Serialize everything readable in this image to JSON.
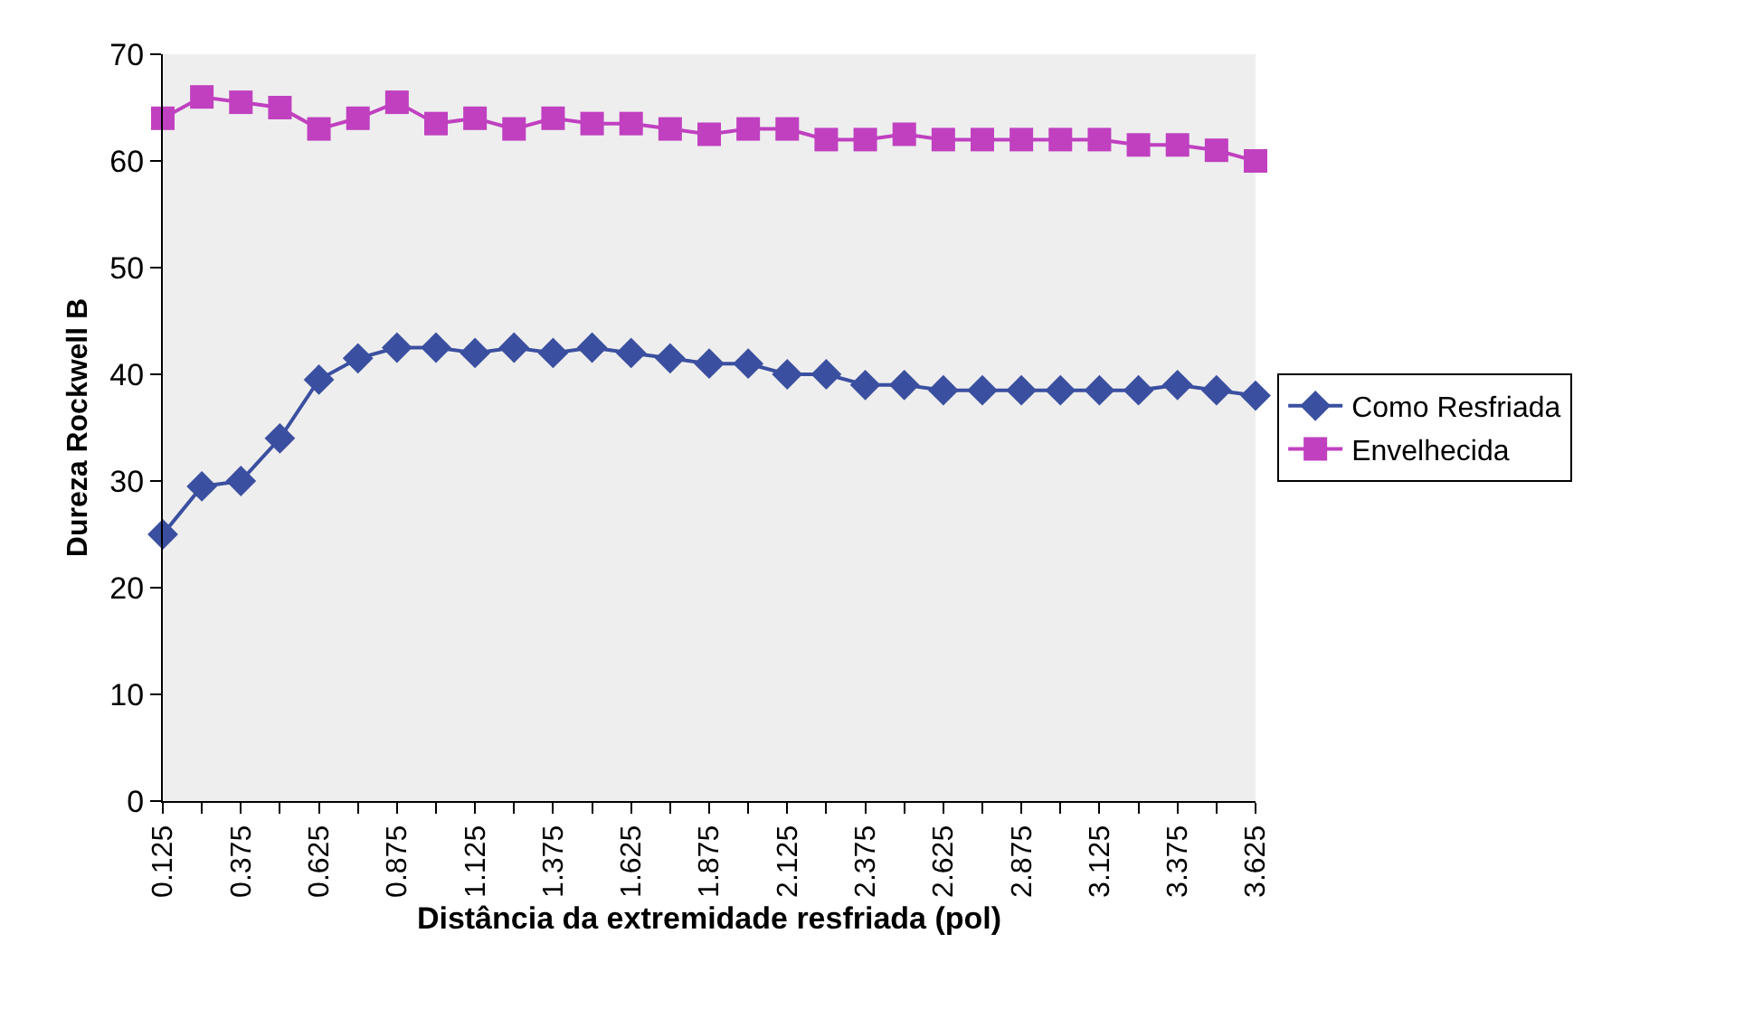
{
  "chart_data": {
    "type": "line",
    "xlabel": "Distância da extremidade resfriada (pol)",
    "ylabel": "Dureza Rockwell B",
    "x": [
      0.125,
      0.25,
      0.375,
      0.5,
      0.625,
      0.75,
      0.875,
      1,
      1.125,
      1.25,
      1.375,
      1.5,
      1.625,
      1.75,
      1.875,
      2,
      2.125,
      2.25,
      2.375,
      2.5,
      2.625,
      2.75,
      2.875,
      3,
      3.125,
      3.25,
      3.375,
      3.5,
      3.625
    ],
    "series": [
      {
        "name": "Como Resfriada",
        "color": "#3b4fa0",
        "marker": "diamond",
        "values": [
          25,
          29.5,
          30,
          34,
          39.5,
          41.5,
          42.5,
          42.5,
          42,
          42.5,
          42,
          42.5,
          42,
          41.5,
          41,
          41,
          40,
          40,
          39,
          39,
          38.5,
          38.5,
          38.5,
          38.5,
          38.5,
          38.5,
          39,
          38.5,
          38
        ]
      },
      {
        "name": "Envelhecida",
        "color": "#c040c0",
        "marker": "square",
        "values": [
          64,
          66,
          65.5,
          65,
          63,
          64,
          65.5,
          63.5,
          64,
          63,
          64,
          63.5,
          63.5,
          63,
          62.5,
          63,
          63,
          62,
          62,
          62.5,
          62,
          62,
          62,
          62,
          62,
          61.5,
          61.5,
          61,
          60
        ]
      }
    ],
    "xlim": [
      0.125,
      3.625
    ],
    "xticks": [
      0.125,
      {
        "value": 0.25,
        "label": null
      },
      0.375,
      {
        "value": 0.5,
        "label": null
      },
      0.625,
      {
        "value": 0.75,
        "label": null
      },
      0.875,
      {
        "value": 1,
        "label": null
      },
      1.125,
      {
        "value": 1.25,
        "label": null
      },
      1.375,
      {
        "value": 1.5,
        "label": null
      },
      1.625,
      {
        "value": 1.75,
        "label": null
      },
      1.875,
      {
        "value": 2,
        "label": null
      },
      2.125,
      {
        "value": 2.25,
        "label": null
      },
      2.375,
      {
        "value": 2.5,
        "label": null
      },
      2.625,
      {
        "value": 2.75,
        "label": null
      },
      2.875,
      {
        "value": 3,
        "label": null
      },
      3.125,
      {
        "value": 3.25,
        "label": null
      },
      3.375,
      {
        "value": 3.5,
        "label": null
      },
      3.625
    ],
    "ylim": [
      0,
      70
    ],
    "yticks": [
      0,
      10,
      20,
      30,
      40,
      50,
      60,
      70
    ],
    "grid": false,
    "legend": "right",
    "line_style": "solid"
  }
}
